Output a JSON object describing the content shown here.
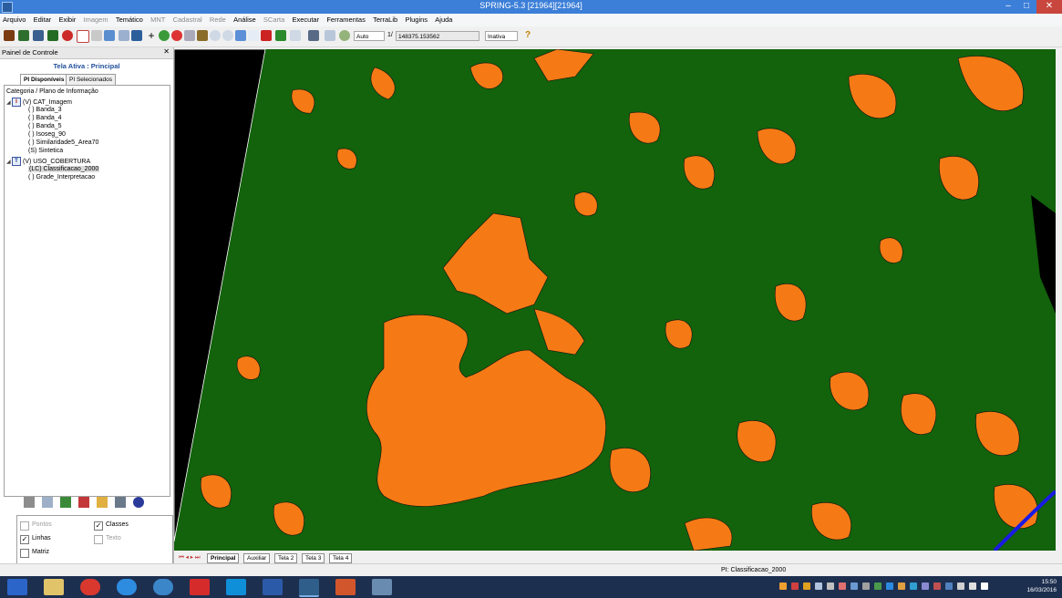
{
  "window": {
    "title": "SPRING-5.3 [21964][21964]",
    "buttons": {
      "minimize": "–",
      "maximize": "□",
      "close": "✕"
    }
  },
  "menu": [
    {
      "label": "Arquivo",
      "enabled": true
    },
    {
      "label": "Editar",
      "enabled": true
    },
    {
      "label": "Exibir",
      "enabled": true
    },
    {
      "label": "Imagem",
      "enabled": false
    },
    {
      "label": "Temático",
      "enabled": true
    },
    {
      "label": "MNT",
      "enabled": false
    },
    {
      "label": "Cadastral",
      "enabled": false
    },
    {
      "label": "Rede",
      "enabled": false
    },
    {
      "label": "Análise",
      "enabled": true
    },
    {
      "label": "SCarta",
      "enabled": false
    },
    {
      "label": "Executar",
      "enabled": true
    },
    {
      "label": "Ferramentas",
      "enabled": true
    },
    {
      "label": "TerraLib",
      "enabled": true
    },
    {
      "label": "Plugins",
      "enabled": true
    },
    {
      "label": "Ajuda",
      "enabled": true
    }
  ],
  "toolbar": {
    "zoom_mode": "Auto",
    "scale_prefix": "1/",
    "scale_value": "148375.153562",
    "state": "Inativa",
    "help_glyph": "?"
  },
  "panel": {
    "header": "Painel de Controle",
    "close_glyph": "✕",
    "active_screen": "Tela Ativa : Principal",
    "tabs": [
      "PI Disponíveis",
      "PI Selecionados"
    ],
    "tree_header": "Categoria / Plano de Informação",
    "tree": [
      {
        "label": "(V) CAT_Imagem",
        "level": 0,
        "icon": "I"
      },
      {
        "label": "( ) Banda_3",
        "level": 1
      },
      {
        "label": "( ) Banda_4",
        "level": 1
      },
      {
        "label": "( ) Banda_5",
        "level": 1
      },
      {
        "label": "( ) Isoseg_90",
        "level": 1
      },
      {
        "label": "( ) Similaridade5_Area70",
        "level": 1
      },
      {
        "label": "(S) Sintetica",
        "level": 1
      },
      {
        "label": "(V) USO_COBERTURA",
        "level": 0,
        "icon": "T"
      },
      {
        "label": "(LC) Classificacao_2000",
        "level": 1,
        "selected": true
      },
      {
        "label": "( ) Grade_Interpretacao",
        "level": 1
      }
    ],
    "checks": [
      {
        "label": "Pontos",
        "checked": false,
        "enabled": false
      },
      {
        "label": "Classes",
        "checked": true,
        "enabled": true
      },
      {
        "label": "Linhas",
        "checked": true,
        "enabled": true
      },
      {
        "label": "Texto",
        "checked": false,
        "enabled": false
      },
      {
        "label": "Matriz",
        "checked": false,
        "enabled": true
      }
    ]
  },
  "map": {
    "background": "#13620c",
    "class_color": "#f57a15",
    "outside": "#000000",
    "road": "#1a1ae6"
  },
  "screen_tabs": {
    "nav": "⏮ ◂ ▸ ⏭",
    "items": [
      "Principal",
      "Auxiliar",
      "Tela 2",
      "Tela 3",
      "Tela 4"
    ],
    "active": "Principal"
  },
  "status": {
    "text": "PI: Classificacao_2000"
  },
  "taskbar": {
    "time": "15:50",
    "date": "16/03/2016"
  }
}
